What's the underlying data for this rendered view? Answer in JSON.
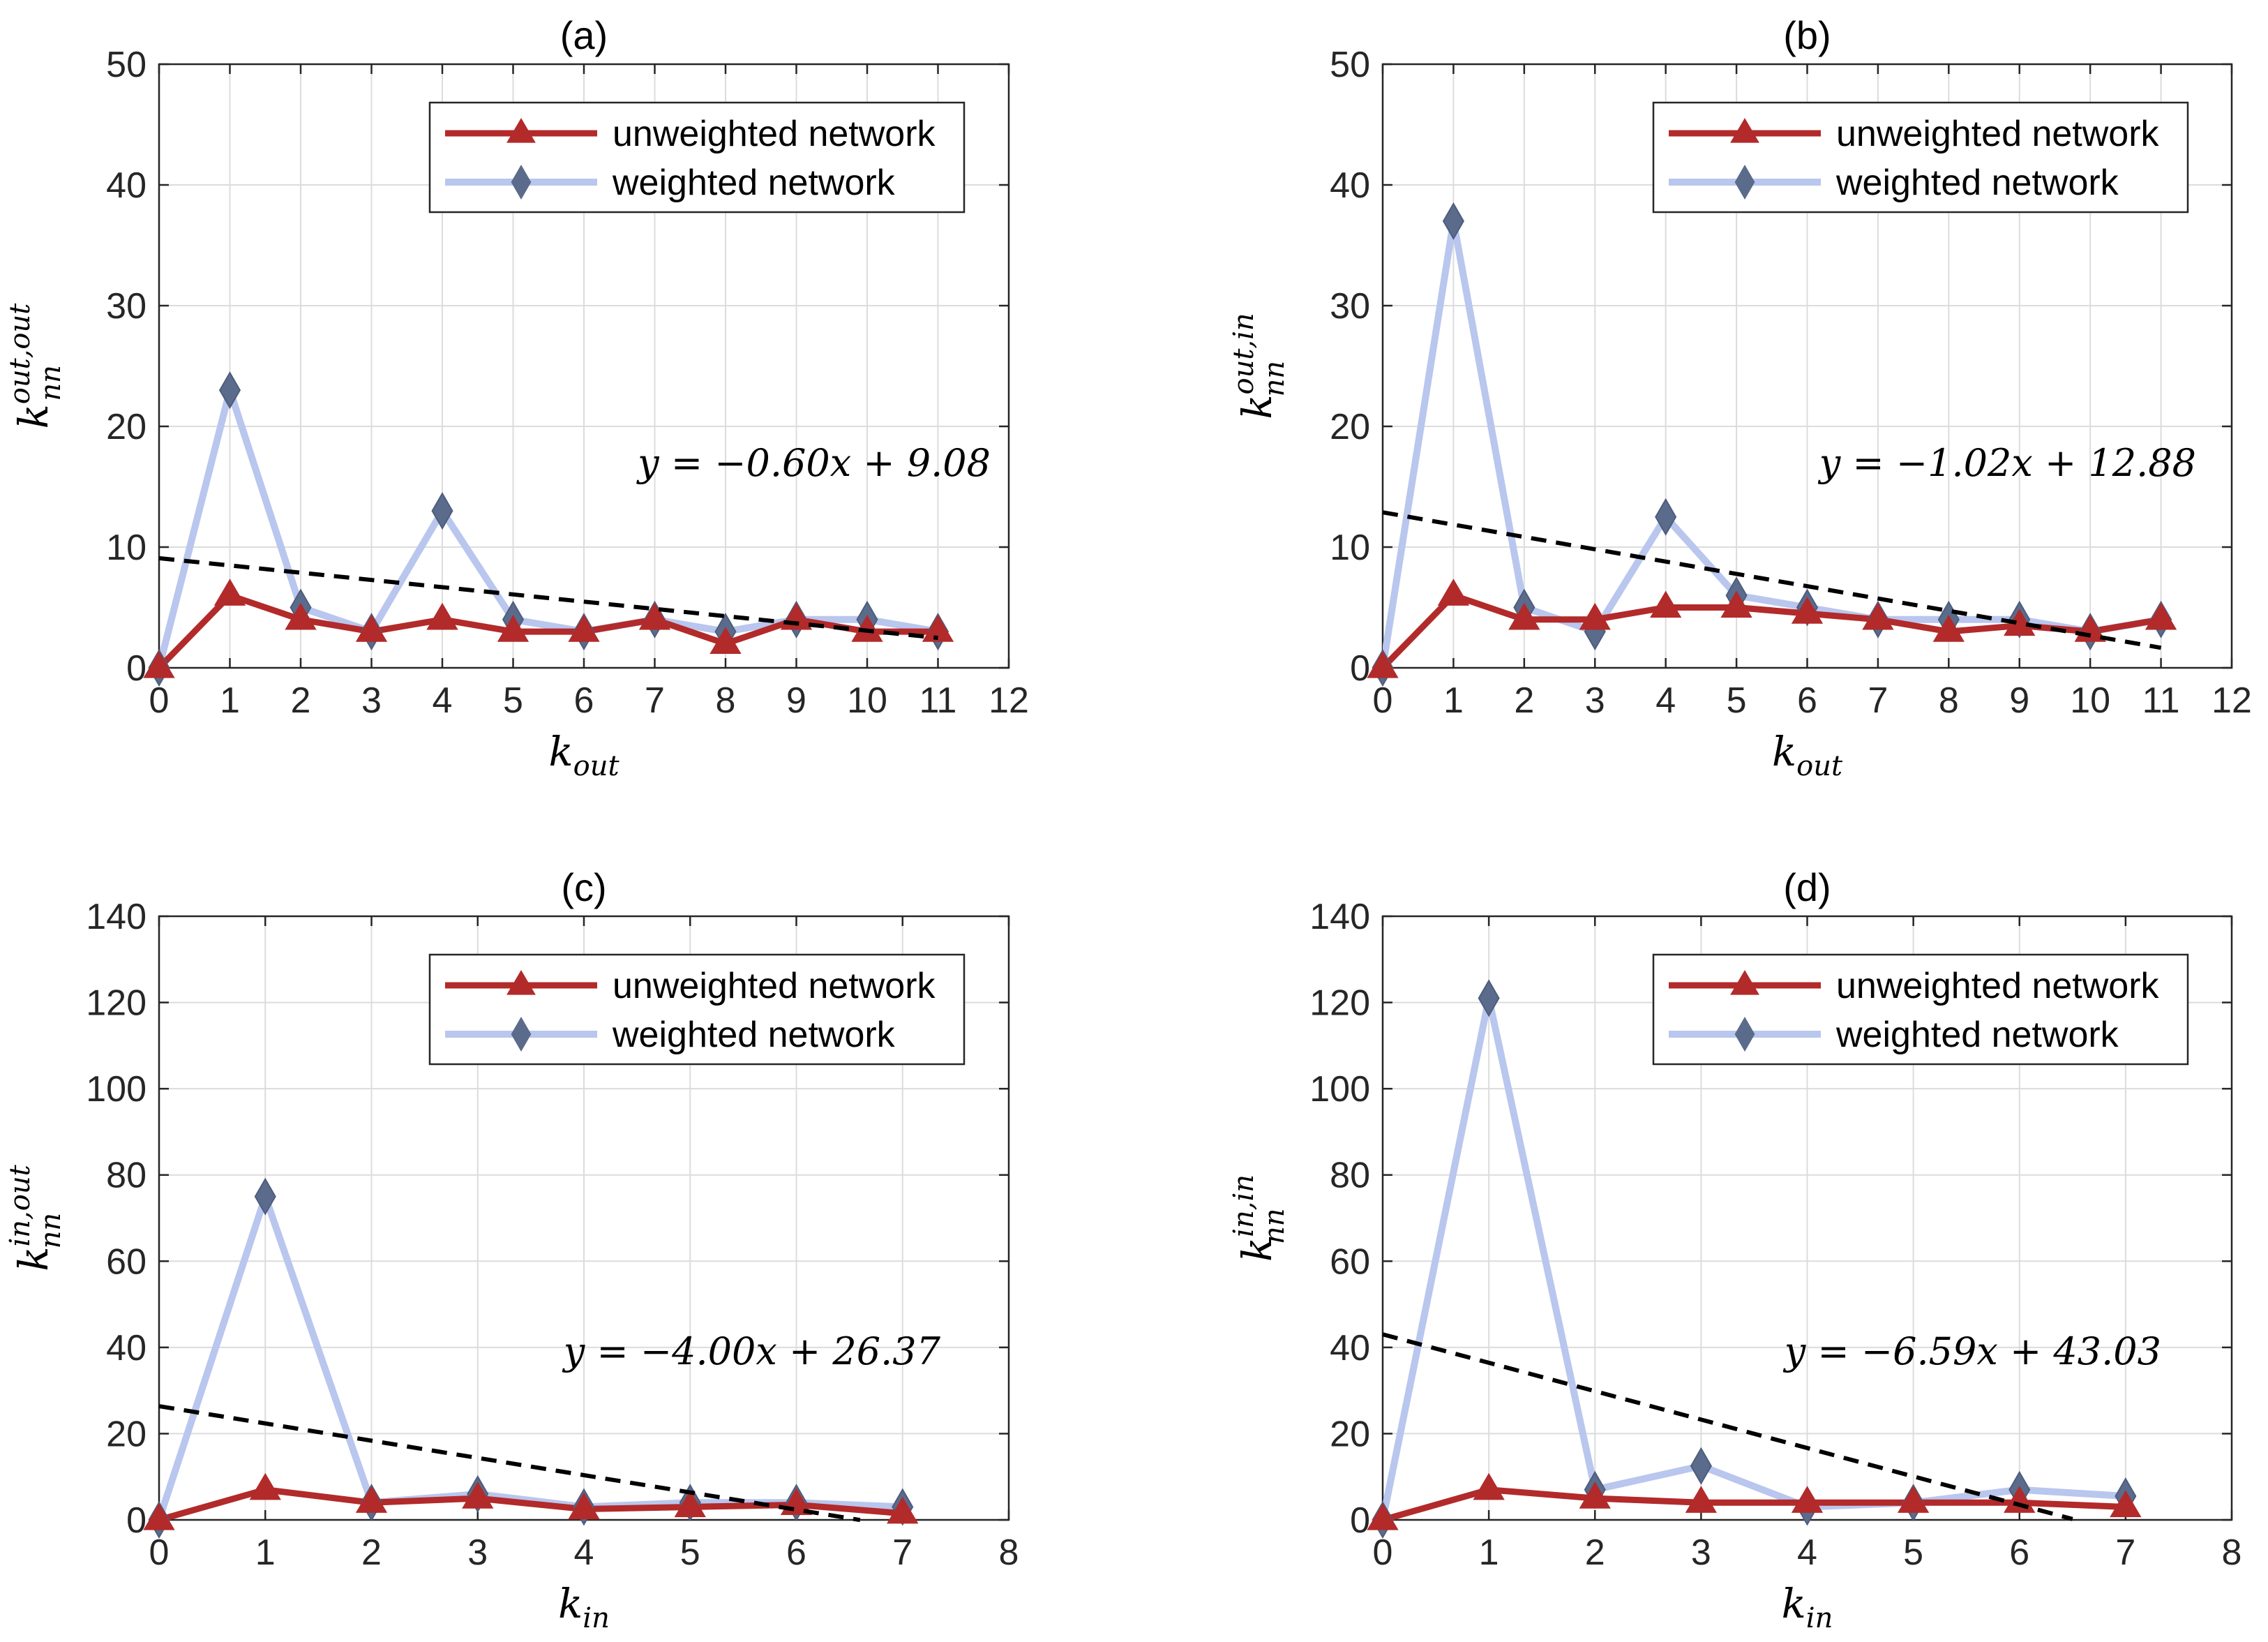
{
  "chart_data": [
    {
      "type": "line",
      "title": "(a)",
      "xlabel": {
        "base": "k",
        "sub": "out"
      },
      "ylabel": {
        "base": "k",
        "sub": "nn",
        "sup": "out,out"
      },
      "xlim": [
        0,
        12
      ],
      "ylim": [
        0,
        50
      ],
      "xticks": [
        0,
        1,
        2,
        3,
        4,
        5,
        6,
        7,
        8,
        9,
        10,
        11,
        12
      ],
      "yticks": [
        0,
        10,
        20,
        30,
        40,
        50
      ],
      "grid": true,
      "legend": "top-right",
      "series": [
        {
          "name": "unweighted network",
          "x": [
            0,
            1,
            2,
            3,
            4,
            5,
            6,
            7,
            8,
            9,
            10,
            11
          ],
          "values": [
            0,
            6,
            4,
            3,
            4,
            3,
            3,
            4,
            2,
            4,
            3,
            3
          ],
          "color": "#b22a2a",
          "marker": "triangle"
        },
        {
          "name": "weighted network",
          "x": [
            0,
            1,
            2,
            3,
            4,
            5,
            6,
            7,
            8,
            9,
            10,
            11
          ],
          "values": [
            0,
            23,
            5,
            3,
            13,
            4,
            3,
            4,
            3,
            4,
            4,
            3
          ],
          "color": "#b9c6ee",
          "marker": "diamond"
        }
      ],
      "fit": {
        "slope": -0.6,
        "intercept": 9.08,
        "x_end": 11,
        "label": {
          "lhs": "y",
          "rhs": "−0.60x + 9.08"
        }
      }
    },
    {
      "type": "line",
      "title": "(b)",
      "xlabel": {
        "base": "k",
        "sub": "out"
      },
      "ylabel": {
        "base": "k",
        "sub": "nn",
        "sup": "out,in"
      },
      "xlim": [
        0,
        12
      ],
      "ylim": [
        0,
        50
      ],
      "xticks": [
        0,
        1,
        2,
        3,
        4,
        5,
        6,
        7,
        8,
        9,
        10,
        11,
        12
      ],
      "yticks": [
        0,
        10,
        20,
        30,
        40,
        50
      ],
      "grid": true,
      "legend": "top-right",
      "series": [
        {
          "name": "unweighted network",
          "x": [
            0,
            1,
            2,
            3,
            4,
            5,
            6,
            7,
            8,
            9,
            10,
            11
          ],
          "values": [
            0,
            6,
            4,
            4,
            5,
            5,
            4.5,
            4,
            3,
            3.5,
            3,
            4
          ],
          "color": "#b22a2a",
          "marker": "triangle"
        },
        {
          "name": "weighted network",
          "x": [
            0,
            1,
            2,
            3,
            4,
            5,
            6,
            7,
            8,
            9,
            10,
            11
          ],
          "values": [
            0,
            37,
            5,
            3,
            12.5,
            6,
            5,
            4,
            4,
            4,
            3,
            4
          ],
          "color": "#b9c6ee",
          "marker": "diamond"
        }
      ],
      "fit": {
        "slope": -1.02,
        "intercept": 12.88,
        "x_end": 11,
        "label": {
          "lhs": "y",
          "rhs": "−1.02x + 12.88"
        }
      }
    },
    {
      "type": "line",
      "title": "(c)",
      "xlabel": {
        "base": "k",
        "sub": "in"
      },
      "ylabel": {
        "base": "k",
        "sub": "nn",
        "sup": "in,out"
      },
      "xlim": [
        0,
        8
      ],
      "ylim": [
        0,
        140
      ],
      "xticks": [
        0,
        1,
        2,
        3,
        4,
        5,
        6,
        7,
        8
      ],
      "yticks": [
        0,
        20,
        40,
        60,
        80,
        100,
        120,
        140
      ],
      "grid": true,
      "legend": "top-right",
      "series": [
        {
          "name": "unweighted network",
          "x": [
            0,
            1,
            2,
            3,
            4,
            5,
            6,
            7
          ],
          "values": [
            0,
            7,
            4,
            5,
            2.5,
            3,
            3.5,
            1.5
          ],
          "color": "#b22a2a",
          "marker": "triangle"
        },
        {
          "name": "weighted network",
          "x": [
            0,
            1,
            2,
            3,
            4,
            5,
            6,
            7
          ],
          "values": [
            0,
            75,
            4,
            6,
            3,
            4,
            4,
            3
          ],
          "color": "#b9c6ee",
          "marker": "diamond"
        }
      ],
      "fit": {
        "slope": -4.0,
        "intercept": 26.37,
        "x_end": 6.6,
        "label": {
          "lhs": "y",
          "rhs": "−4.00x + 26.37"
        }
      }
    },
    {
      "type": "line",
      "title": "(d)",
      "xlabel": {
        "base": "k",
        "sub": "in"
      },
      "ylabel": {
        "base": "k",
        "sub": "nn",
        "sup": "in,in"
      },
      "xlim": [
        0,
        8
      ],
      "ylim": [
        0,
        140
      ],
      "xticks": [
        0,
        1,
        2,
        3,
        4,
        5,
        6,
        7,
        8
      ],
      "yticks": [
        0,
        20,
        40,
        60,
        80,
        100,
        120,
        140
      ],
      "grid": true,
      "legend": "top-right",
      "series": [
        {
          "name": "unweighted network",
          "x": [
            0,
            1,
            2,
            3,
            4,
            5,
            6,
            7
          ],
          "values": [
            0,
            7,
            5,
            4,
            4,
            4,
            4,
            3
          ],
          "color": "#b22a2a",
          "marker": "triangle"
        },
        {
          "name": "weighted network",
          "x": [
            0,
            1,
            2,
            3,
            4,
            5,
            6,
            7
          ],
          "values": [
            0,
            121,
            7,
            12.5,
            3,
            4,
            7,
            5.5
          ],
          "color": "#b9c6ee",
          "marker": "diamond"
        }
      ],
      "fit": {
        "slope": -6.59,
        "intercept": 43.03,
        "x_end": 6.5,
        "label": {
          "lhs": "y",
          "rhs": "−6.59x + 43.03"
        }
      }
    }
  ]
}
